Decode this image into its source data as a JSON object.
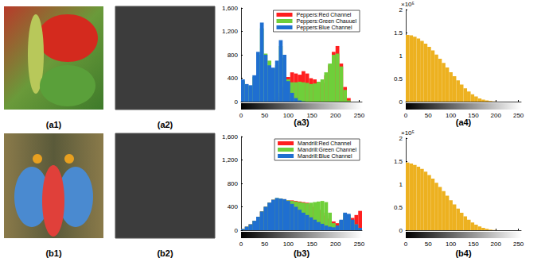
{
  "images": [
    {
      "label": "(a1)"
    },
    {
      "label": "(a2)"
    },
    {
      "label": "(b1)"
    },
    {
      "label": "(b2)"
    }
  ],
  "chart_data": [
    {
      "type": "histogram",
      "title": "(a3)",
      "xlim": [
        0,
        256
      ],
      "xticks": [
        0,
        50,
        100,
        150,
        200,
        250
      ],
      "ylim": [
        0,
        1600
      ],
      "yticks": [
        0,
        400,
        800,
        1200,
        1600
      ],
      "grid": false,
      "legend": "upper right",
      "bins": [
        0,
        8,
        16,
        24,
        32,
        40,
        48,
        56,
        64,
        72,
        80,
        88,
        96,
        104,
        112,
        120,
        128,
        136,
        144,
        152,
        160,
        168,
        176,
        184,
        192,
        200,
        208,
        216,
        224,
        232,
        240,
        248,
        256
      ],
      "series": [
        {
          "name": "Peppers:Red Channel",
          "color": "#ff1f1f",
          "values": [
            0,
            0,
            0,
            0,
            0,
            0,
            0,
            20,
            40,
            80,
            150,
            250,
            420,
            500,
            480,
            460,
            520,
            480,
            400,
            380,
            330,
            320,
            450,
            620,
            850,
            950,
            650,
            250,
            60,
            0,
            0,
            0
          ]
        },
        {
          "name": "Peppers:Green Chauuel",
          "color": "#6fcf3a",
          "values": [
            350,
            280,
            260,
            420,
            800,
            1250,
            820,
            700,
            560,
            620,
            950,
            750,
            380,
            330,
            330,
            340,
            330,
            320,
            300,
            310,
            340,
            380,
            500,
            650,
            800,
            820,
            600,
            200,
            20,
            0,
            0,
            0
          ]
        },
        {
          "name": "Peppers:Blue Channel",
          "color": "#1f6fd0",
          "values": [
            380,
            300,
            280,
            450,
            850,
            1350,
            800,
            620,
            580,
            700,
            1050,
            800,
            350,
            150,
            60,
            20,
            5,
            0,
            0,
            0,
            0,
            0,
            0,
            0,
            0,
            0,
            0,
            0,
            0,
            0,
            0,
            0
          ]
        }
      ]
    },
    {
      "type": "histogram",
      "title": "(a4)",
      "annotation": "×10⁵",
      "xlim": [
        0,
        256
      ],
      "xticks": [
        0,
        50,
        100,
        150,
        200,
        250
      ],
      "ylim": [
        0,
        2
      ],
      "yticks": [
        0,
        0.5,
        1,
        1.5,
        2
      ],
      "grid": false,
      "color": "#edb120",
      "bins": [
        0,
        8,
        16,
        24,
        32,
        40,
        48,
        56,
        64,
        72,
        80,
        88,
        96,
        104,
        112,
        120,
        128,
        136,
        144,
        152,
        160,
        168,
        176,
        184,
        192,
        200,
        208,
        216,
        224,
        232,
        240,
        248,
        256
      ],
      "values": [
        1.45,
        1.44,
        1.41,
        1.37,
        1.32,
        1.26,
        1.19,
        1.11,
        1.02,
        0.93,
        0.84,
        0.74,
        0.64,
        0.55,
        0.46,
        0.37,
        0.29,
        0.22,
        0.16,
        0.11,
        0.07,
        0.045,
        0.025,
        0.012,
        0.005,
        0.002,
        0,
        0,
        0,
        0,
        0,
        0
      ]
    },
    {
      "type": "histogram",
      "title": "(b3)",
      "xlim": [
        0,
        256
      ],
      "xticks": [
        0,
        50,
        100,
        150,
        200,
        250
      ],
      "ylim": [
        0,
        1600
      ],
      "yticks": [
        0,
        400,
        800,
        1200,
        1600
      ],
      "grid": false,
      "legend": "upper right",
      "bins": [
        0,
        8,
        16,
        24,
        32,
        40,
        48,
        56,
        64,
        72,
        80,
        88,
        96,
        104,
        112,
        120,
        128,
        136,
        144,
        152,
        160,
        168,
        176,
        184,
        192,
        200,
        208,
        216,
        224,
        232,
        240,
        248,
        256
      ],
      "series": [
        {
          "name": "Mandrill:Red Channel",
          "color": "#ff1f1f",
          "values": [
            20,
            60,
            100,
            160,
            230,
            320,
            400,
            470,
            520,
            540,
            540,
            530,
            510,
            510,
            500,
            490,
            480,
            470,
            440,
            400,
            350,
            300,
            250,
            200,
            150,
            120,
            150,
            200,
            230,
            210,
            260,
            330
          ]
        },
        {
          "name": "Mandrill:Green Channel",
          "color": "#6fcf3a",
          "values": [
            20,
            60,
            100,
            160,
            230,
            320,
            400,
            470,
            520,
            550,
            540,
            530,
            510,
            500,
            490,
            480,
            470,
            460,
            470,
            480,
            490,
            500,
            480,
            300,
            120,
            80,
            170,
            280,
            260,
            170,
            100,
            40
          ]
        },
        {
          "name": "Mandrill:Blue Channel",
          "color": "#1f6fd0",
          "values": [
            20,
            60,
            100,
            160,
            230,
            320,
            400,
            470,
            520,
            550,
            540,
            530,
            500,
            450,
            400,
            350,
            300,
            260,
            220,
            180,
            140,
            110,
            80,
            60,
            50,
            80,
            180,
            300,
            280,
            180,
            100,
            40
          ]
        }
      ]
    },
    {
      "type": "histogram",
      "title": "(b4)",
      "annotation": "×10⁵",
      "xlim": [
        0,
        256
      ],
      "xticks": [
        0,
        50,
        100,
        150,
        200,
        250
      ],
      "ylim": [
        0,
        2
      ],
      "yticks": [
        0,
        0.5,
        1,
        1.5,
        2
      ],
      "grid": false,
      "color": "#edb120",
      "bins": [
        0,
        8,
        16,
        24,
        32,
        40,
        48,
        56,
        64,
        72,
        80,
        88,
        96,
        104,
        112,
        120,
        128,
        136,
        144,
        152,
        160,
        168,
        176,
        184,
        192,
        200,
        208,
        216,
        224,
        232,
        240,
        248,
        256
      ],
      "values": [
        1.47,
        1.45,
        1.42,
        1.38,
        1.33,
        1.27,
        1.2,
        1.12,
        1.03,
        0.94,
        0.85,
        0.75,
        0.65,
        0.56,
        0.47,
        0.38,
        0.3,
        0.23,
        0.17,
        0.12,
        0.08,
        0.05,
        0.03,
        0.015,
        0.006,
        0.002,
        0,
        0,
        0,
        0,
        0,
        0
      ]
    }
  ]
}
